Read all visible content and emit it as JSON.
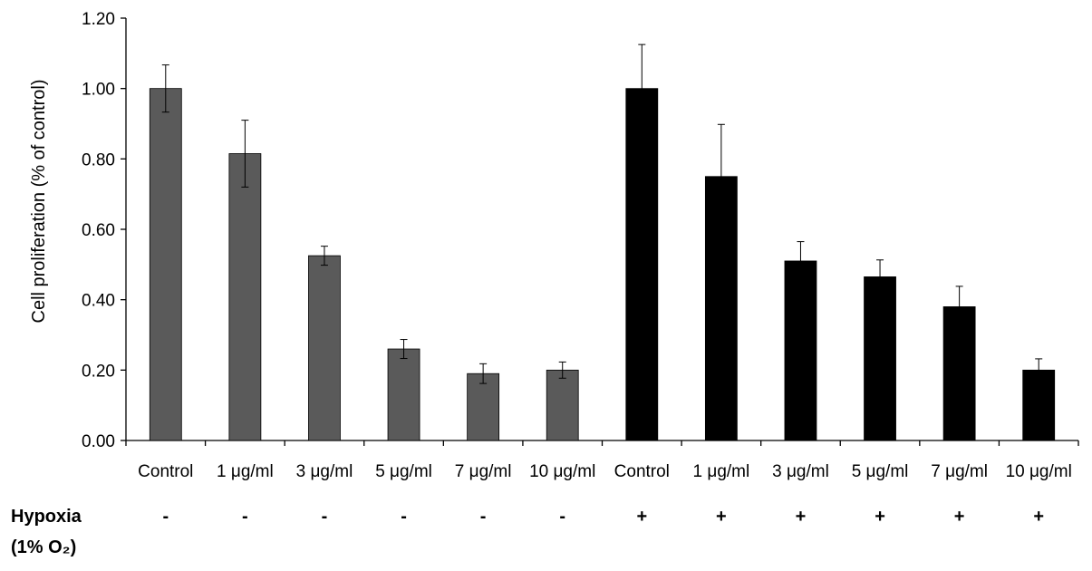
{
  "chart_data": {
    "type": "bar",
    "ylabel": "Cell proliferation  (% of control)",
    "xlabel": "",
    "title": "",
    "ylim": [
      0,
      1.2
    ],
    "yticks": [
      "0.00",
      "0.20",
      "0.40",
      "0.60",
      "0.80",
      "1.00",
      "1.20"
    ],
    "grid": false,
    "categories": [
      "Control",
      "1 μg/ml",
      "3 μg/ml",
      "5 μg/ml",
      "7 μg/ml",
      "10 μg/ml",
      "Control",
      "1 μg/ml",
      "3 μg/ml",
      "5 μg/ml",
      "7 μg/ml",
      "10 μg/ml"
    ],
    "values": [
      1.0,
      0.815,
      0.525,
      0.26,
      0.19,
      0.2,
      1.0,
      0.75,
      0.51,
      0.465,
      0.38,
      0.2
    ],
    "errors": [
      0.067,
      0.095,
      0.027,
      0.027,
      0.028,
      0.023,
      0.125,
      0.148,
      0.055,
      0.048,
      0.058,
      0.032
    ],
    "bar_colors": [
      "#5a5a5a",
      "#5a5a5a",
      "#5a5a5a",
      "#5a5a5a",
      "#5a5a5a",
      "#5a5a5a",
      "#000000",
      "#000000",
      "#000000",
      "#000000",
      "#000000",
      "#000000"
    ],
    "hypoxia_row": {
      "label_line1": "Hypoxia",
      "label_line2": "(1% O₂)",
      "values": [
        "-",
        "-",
        "-",
        "-",
        "-",
        "-",
        "+",
        "+",
        "+",
        "+",
        "+",
        "+"
      ]
    }
  }
}
